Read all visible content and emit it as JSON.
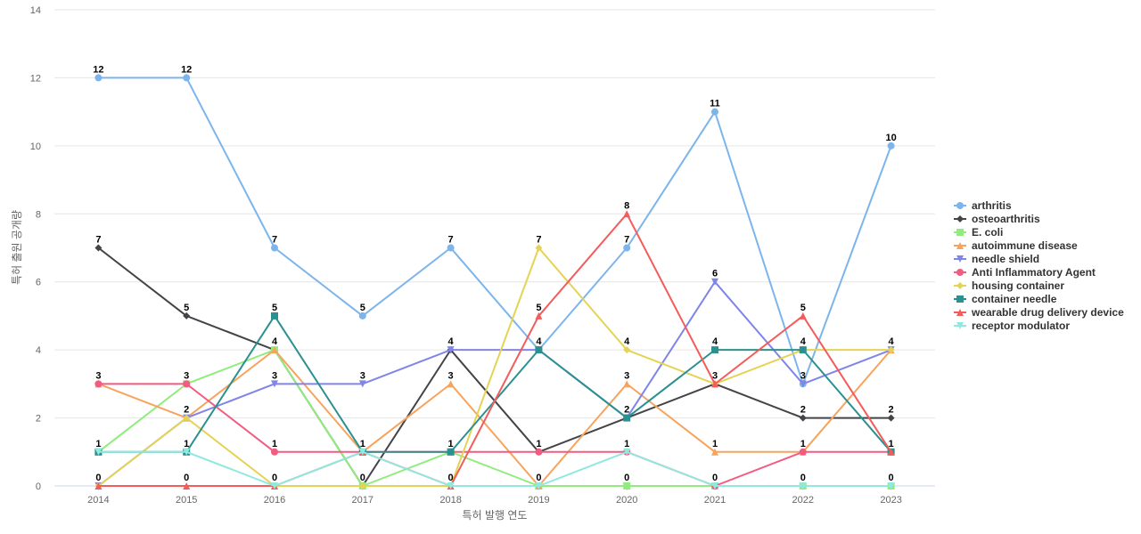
{
  "chart_data": {
    "type": "line",
    "title": "",
    "xlabel": "특허 발행 연도",
    "ylabel": "특허 출원 공개량",
    "categories": [
      "2014",
      "2015",
      "2016",
      "2017",
      "2018",
      "2019",
      "2020",
      "2021",
      "2022",
      "2023"
    ],
    "ylim": [
      0,
      14
    ],
    "yticks": [
      0,
      2,
      4,
      6,
      8,
      10,
      12,
      14
    ],
    "grid": true,
    "legend_position": "right",
    "series": [
      {
        "name": "arthritis",
        "color": "#7cb5ec",
        "marker": "circle",
        "values": [
          12,
          12,
          7,
          5,
          7,
          4,
          7,
          11,
          3,
          10
        ]
      },
      {
        "name": "osteoarthritis",
        "color": "#434348",
        "marker": "diamond",
        "values": [
          7,
          5,
          4,
          0,
          4,
          1,
          2,
          3,
          2,
          2
        ]
      },
      {
        "name": "E. coli",
        "color": "#90ed7d",
        "marker": "square",
        "values": [
          1,
          3,
          4,
          0,
          1,
          0,
          0,
          0,
          0,
          0
        ]
      },
      {
        "name": "autoimmune disease",
        "color": "#f7a35c",
        "marker": "triangle",
        "values": [
          3,
          2,
          4,
          1,
          3,
          0,
          3,
          1,
          1,
          4
        ]
      },
      {
        "name": "needle shield",
        "color": "#8085e9",
        "marker": "triangle-down",
        "values": [
          0,
          2,
          3,
          3,
          4,
          4,
          2,
          6,
          3,
          4
        ]
      },
      {
        "name": "Anti Inflammatory Agent",
        "color": "#f15c80",
        "marker": "circle",
        "values": [
          3,
          3,
          1,
          1,
          1,
          1,
          1,
          0,
          1,
          1
        ]
      },
      {
        "name": "housing container",
        "color": "#e4d354",
        "marker": "diamond",
        "values": [
          0,
          2,
          0,
          0,
          0,
          7,
          4,
          3,
          4,
          4
        ]
      },
      {
        "name": "container needle",
        "color": "#2b908f",
        "marker": "square",
        "values": [
          1,
          1,
          5,
          1,
          1,
          4,
          2,
          4,
          4,
          1
        ]
      },
      {
        "name": "wearable drug delivery device",
        "color": "#f45b5b",
        "marker": "triangle",
        "values": [
          0,
          0,
          0,
          1,
          0,
          5,
          8,
          3,
          5,
          1
        ]
      },
      {
        "name": "receptor modulator",
        "color": "#91e8e1",
        "marker": "triangle-down",
        "values": [
          1,
          1,
          0,
          1,
          0,
          0,
          1,
          0,
          0,
          0
        ]
      }
    ],
    "data_labels": [
      {
        "category": "2014",
        "values": [
          12,
          7,
          3,
          1,
          0
        ]
      },
      {
        "category": "2015",
        "values": [
          12,
          5,
          3,
          2,
          1,
          0
        ]
      },
      {
        "category": "2016",
        "values": [
          7,
          5,
          4,
          3,
          1,
          0
        ]
      },
      {
        "category": "2017",
        "values": [
          5,
          3,
          1,
          0
        ]
      },
      {
        "category": "2018",
        "values": [
          7,
          4,
          3,
          1,
          0
        ]
      },
      {
        "category": "2019",
        "values": [
          7,
          5,
          4,
          1,
          0
        ]
      },
      {
        "category": "2020",
        "values": [
          8,
          7,
          4,
          3,
          2,
          1,
          0
        ]
      },
      {
        "category": "2021",
        "values": [
          11,
          6,
          4,
          3,
          1,
          0
        ]
      },
      {
        "category": "2022",
        "values": [
          5,
          4,
          3,
          2,
          1,
          0
        ]
      },
      {
        "category": "2023",
        "values": [
          10,
          4,
          2,
          1,
          0
        ]
      }
    ]
  }
}
